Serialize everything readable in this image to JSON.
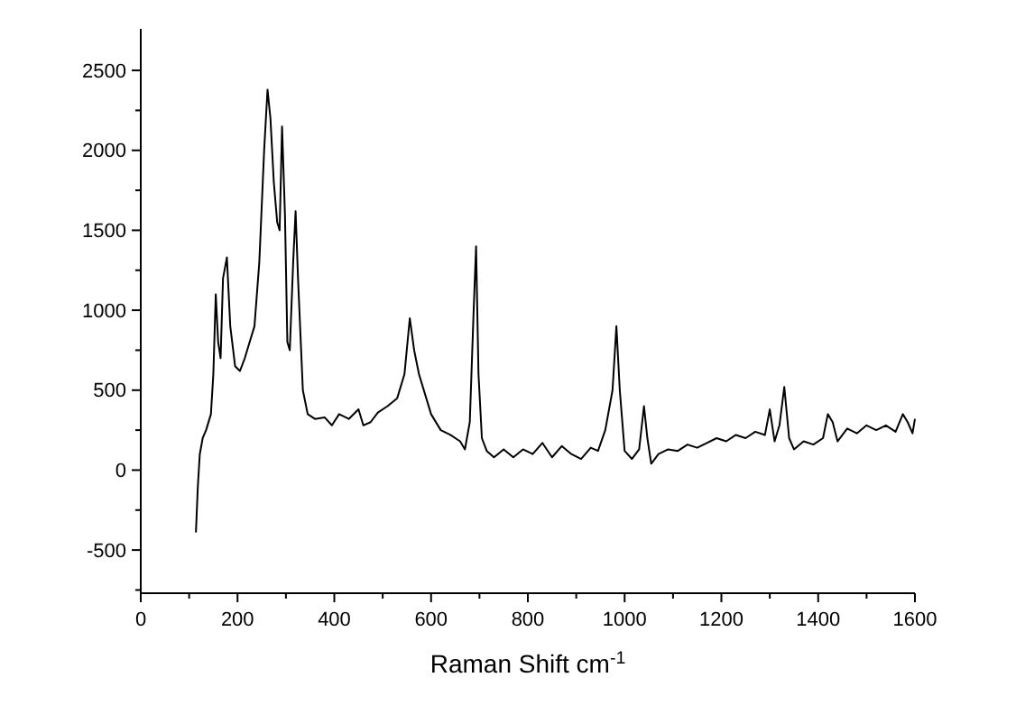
{
  "chart_data": {
    "type": "line",
    "xlabel": "Raman Shift  cm$^{-1}$",
    "xlim": [
      0,
      1600
    ],
    "ylim": [
      -770,
      2760
    ],
    "xticks": [
      0,
      {
        "value": 100,
        "label": null
      },
      200,
      {
        "value": 300,
        "label": null
      },
      400,
      {
        "value": 500,
        "label": null
      },
      600,
      {
        "value": 700,
        "label": null
      },
      800,
      {
        "value": 900,
        "label": null
      },
      1000,
      {
        "value": 1100,
        "label": null
      },
      1200,
      {
        "value": 1300,
        "label": null
      },
      1400,
      {
        "value": 1500,
        "label": null
      },
      1600
    ],
    "yticks": [
      {
        "value": -750,
        "label": null
      },
      -500,
      {
        "value": -250,
        "label": null
      },
      0,
      {
        "value": 250,
        "label": null
      },
      500,
      {
        "value": 750,
        "label": null
      },
      1000,
      {
        "value": 1250,
        "label": null
      },
      1500,
      {
        "value": 1750,
        "label": null
      },
      2000,
      {
        "value": 2250,
        "label": null
      },
      2500
    ],
    "grid": false,
    "line_style": "solid",
    "series": [
      {
        "color": "#000000",
        "x": [
          114,
          118,
          122,
          128,
          135,
          145,
          150,
          155,
          160,
          165,
          170,
          178,
          185,
          195,
          205,
          215,
          225,
          235,
          245,
          255,
          262,
          268,
          275,
          282,
          287,
          292,
          298,
          303,
          308,
          315,
          320,
          325,
          335,
          345,
          360,
          380,
          395,
          410,
          430,
          450,
          460,
          475,
          490,
          510,
          530,
          545,
          556,
          565,
          575,
          590,
          600,
          620,
          640,
          660,
          670,
          680,
          688,
          693,
          698,
          705,
          715,
          730,
          750,
          770,
          790,
          810,
          830,
          850,
          870,
          890,
          910,
          930,
          945,
          960,
          975,
          983,
          990,
          1000,
          1015,
          1030,
          1040,
          1047,
          1055,
          1070,
          1090,
          1110,
          1130,
          1150,
          1170,
          1190,
          1210,
          1230,
          1250,
          1270,
          1290,
          1300,
          1310,
          1320,
          1330,
          1340,
          1350,
          1370,
          1390,
          1410,
          1420,
          1430,
          1440,
          1460,
          1480,
          1500,
          1520,
          1540,
          1560,
          1575,
          1585,
          1595,
          1600
        ],
        "values": [
          -390,
          -100,
          100,
          200,
          250,
          350,
          600,
          1100,
          800,
          700,
          1200,
          1330,
          900,
          650,
          620,
          700,
          800,
          900,
          1300,
          2000,
          2380,
          2200,
          1800,
          1550,
          1500,
          2150,
          1600,
          800,
          750,
          1300,
          1620,
          1200,
          500,
          350,
          320,
          330,
          280,
          350,
          320,
          380,
          280,
          300,
          360,
          400,
          450,
          600,
          950,
          750,
          600,
          450,
          350,
          250,
          220,
          180,
          130,
          300,
          1000,
          1400,
          600,
          200,
          120,
          80,
          130,
          80,
          130,
          100,
          170,
          80,
          150,
          100,
          70,
          140,
          120,
          250,
          500,
          900,
          500,
          120,
          70,
          130,
          400,
          200,
          40,
          100,
          130,
          120,
          160,
          140,
          170,
          200,
          180,
          220,
          200,
          240,
          220,
          380,
          180,
          280,
          520,
          200,
          130,
          180,
          160,
          200,
          350,
          300,
          180,
          260,
          230,
          280,
          250,
          280,
          240,
          350,
          300,
          230,
          320
        ]
      }
    ]
  }
}
